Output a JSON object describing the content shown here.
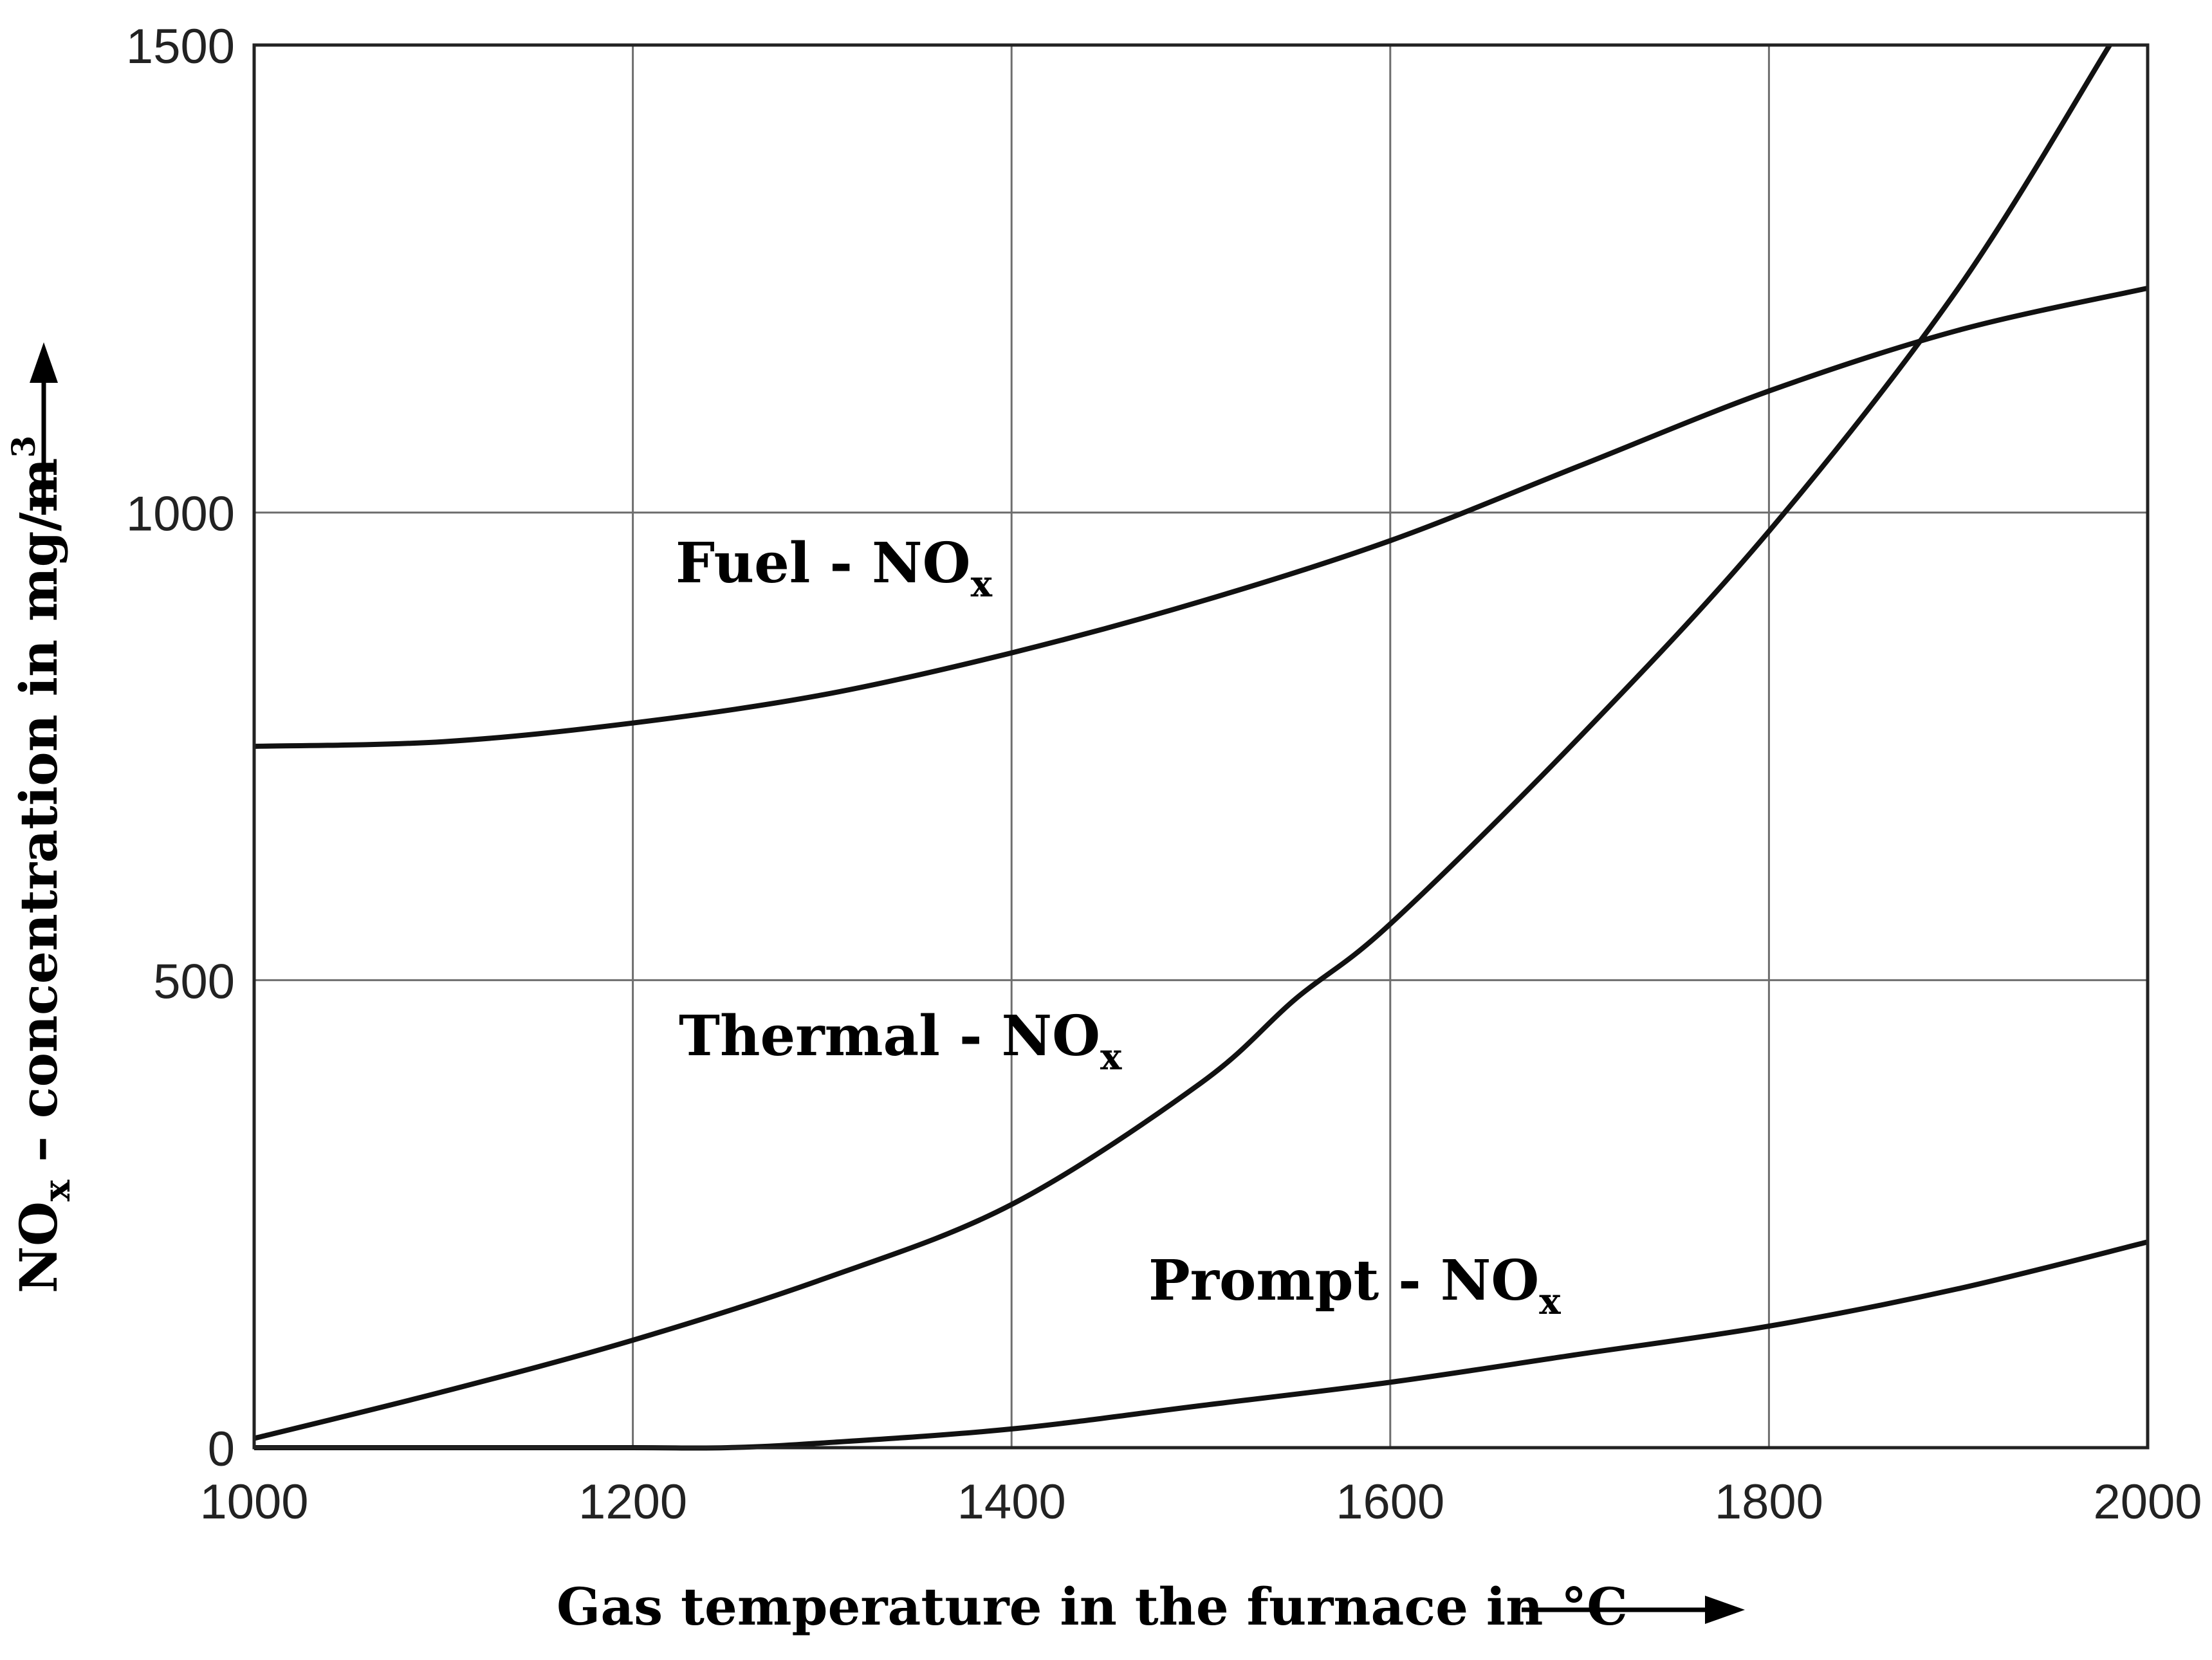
{
  "chart_data": {
    "type": "line",
    "title": "",
    "xlabel": "Gas temperature in the furnace in °C",
    "ylabel_parts": {
      "prefix": "NO",
      "sub": "x",
      "mid": " – concentration in mg/m",
      "sup": "3"
    },
    "xlim": [
      1000,
      2000
    ],
    "ylim": [
      0,
      1500
    ],
    "xticks": [
      1000,
      1200,
      1400,
      1600,
      1800,
      2000
    ],
    "yticks": [
      0,
      500,
      1000,
      1500
    ],
    "grid": true,
    "series": [
      {
        "name": "Fuel - NOx",
        "label_main": "Fuel - NO",
        "label_sub": "x",
        "x": [
          1000,
          1100,
          1200,
          1300,
          1400,
          1500,
          1600,
          1700,
          1800,
          1900,
          2000
        ],
        "y": [
          750,
          755,
          775,
          805,
          850,
          905,
          970,
          1050,
          1130,
          1195,
          1240
        ]
      },
      {
        "name": "Thermal - NOx",
        "label_main": "Thermal - NO",
        "label_sub": "x",
        "x": [
          1000,
          1100,
          1200,
          1300,
          1400,
          1500,
          1550,
          1600,
          1700,
          1800,
          1900,
          1980
        ],
        "y": [
          10,
          60,
          115,
          180,
          260,
          390,
          480,
          560,
          760,
          980,
          1240,
          1500
        ]
      },
      {
        "name": "Prompt - NOx",
        "label_main": "Prompt - NO",
        "label_sub": "x",
        "x": [
          1000,
          1100,
          1200,
          1250,
          1300,
          1400,
          1500,
          1600,
          1700,
          1800,
          1900,
          2000
        ],
        "y": [
          0,
          0,
          0,
          0,
          5,
          20,
          45,
          70,
          100,
          130,
          170,
          220
        ]
      }
    ]
  }
}
